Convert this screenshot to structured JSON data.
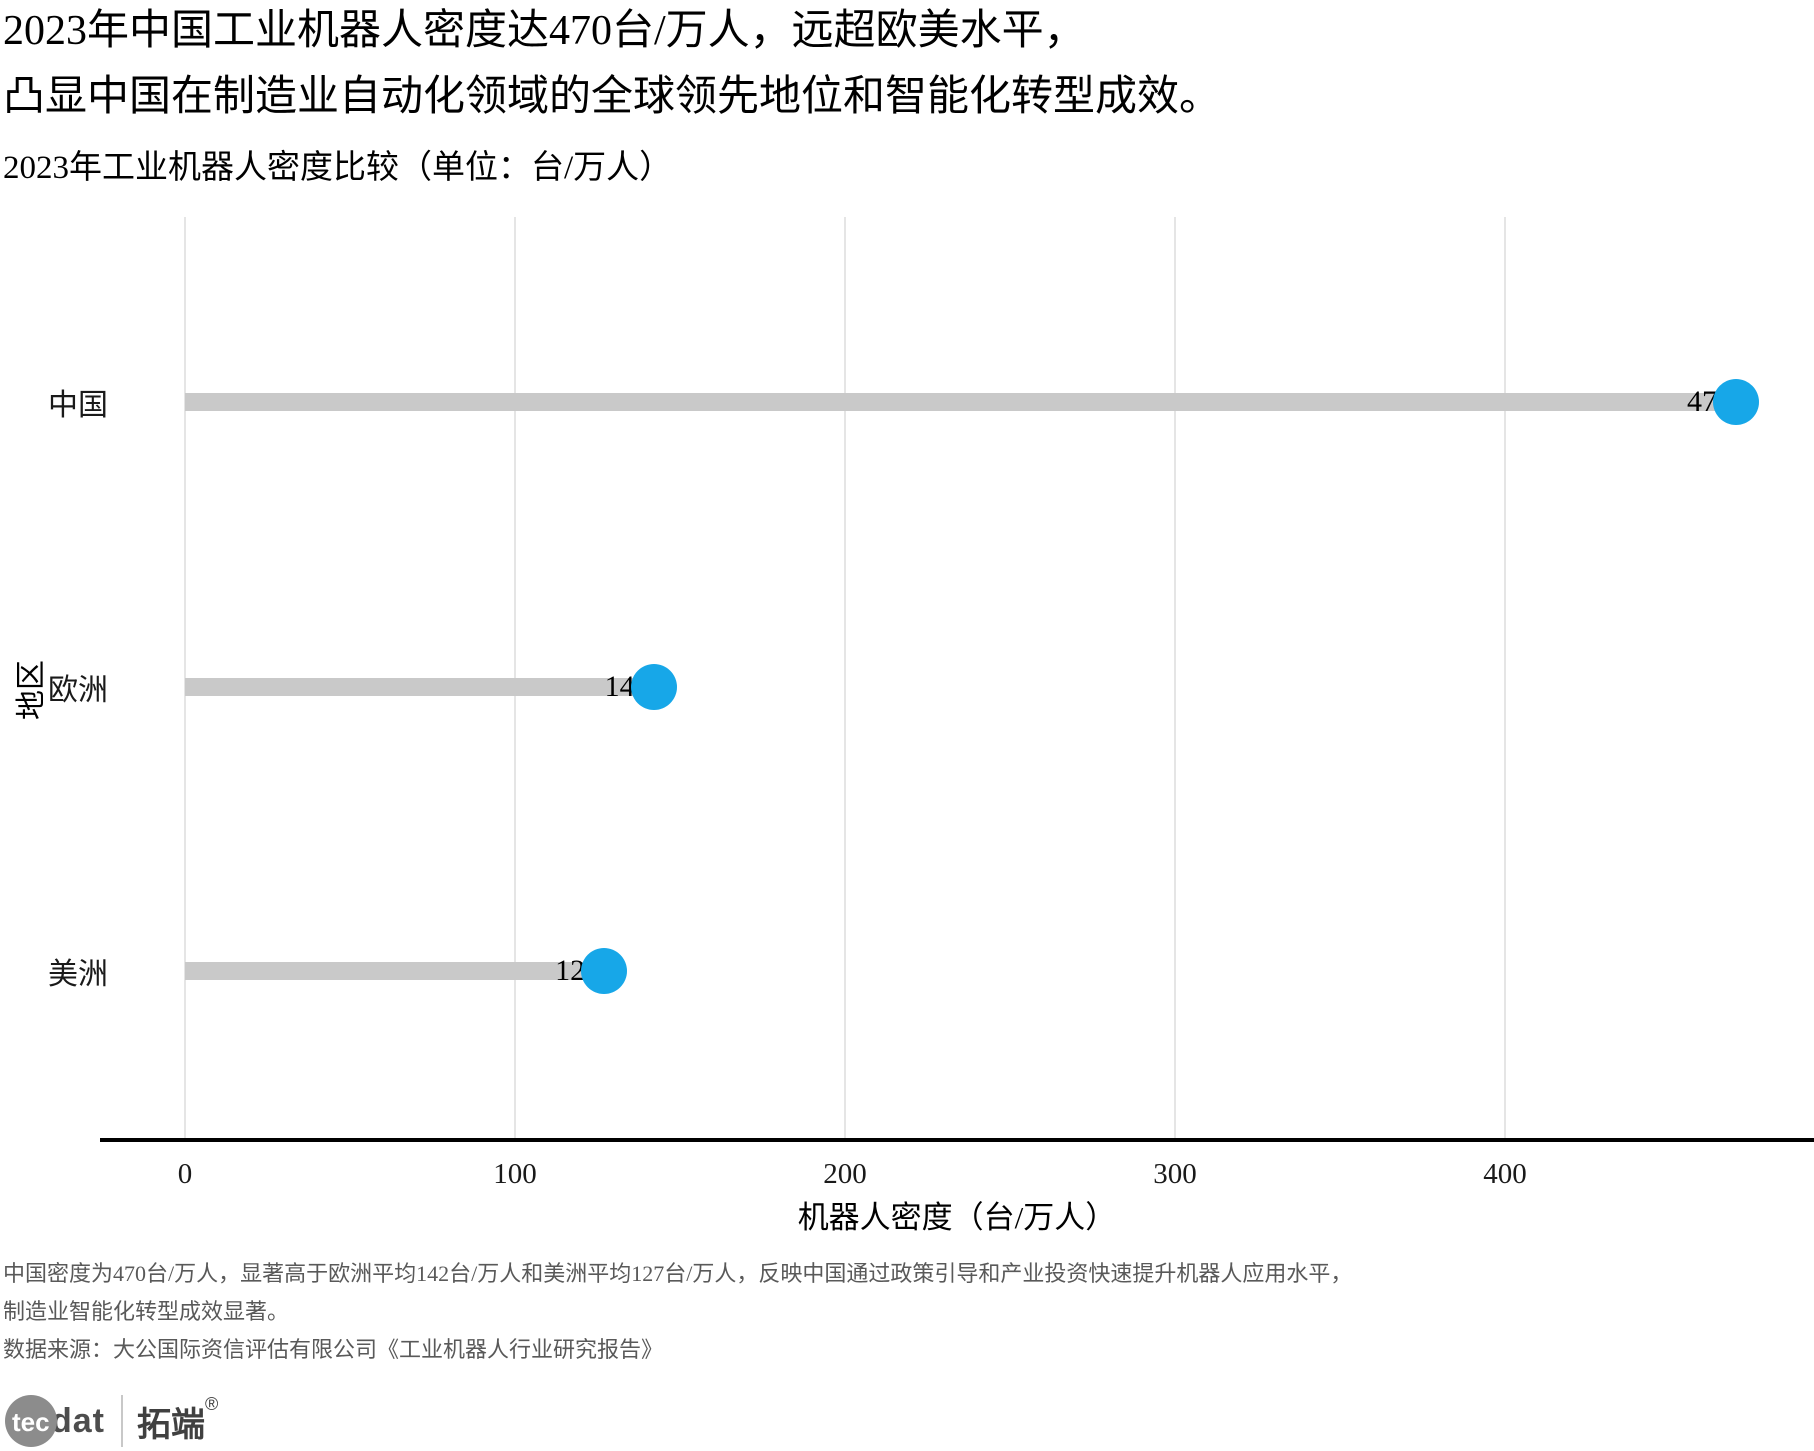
{
  "title": {
    "line1": "2023年中国工业机器人密度达470台/万人，远超欧美水平，",
    "line2": "凸显中国在制造业自动化领域的全球领先地位和智能化转型成效。"
  },
  "subtitle": "2023年工业机器人密度比较（单位：台/万人）",
  "chart_data": {
    "type": "bar",
    "orientation": "horizontal",
    "title": "2023年工业机器人密度比较（单位：台/万人）",
    "categories": [
      "中国",
      "欧洲",
      "美洲"
    ],
    "values": [
      470,
      142,
      127
    ],
    "value_labels": [
      "470",
      "142",
      "127"
    ],
    "xlabel": "机器人密度（台/万人）",
    "ylabel": "地区",
    "xticks": [
      0,
      100,
      200,
      300,
      400
    ],
    "xlim": [
      0,
      493
    ],
    "grid": "vertical-only",
    "legend": "none",
    "bar_color": "#c9c9c9",
    "dot_color": "#17a7e8",
    "gridline_color": "#e5e5e5",
    "axis_line_color": "#000000"
  },
  "footer": {
    "note_line1": "中国密度为470台/万人，显著高于欧洲平均142台/万人和美洲平均127台/万人，反映中国通过政策引导和产业投资快速提升机器人应用水平，",
    "note_line2": "制造业智能化转型成效显著。",
    "source": "数据来源：大公国际资信评估有限公司《工业机器人行业研究报告》"
  },
  "logo": {
    "tec": "tec",
    "dat": "dat",
    "brand": "拓端",
    "reg": "®"
  }
}
